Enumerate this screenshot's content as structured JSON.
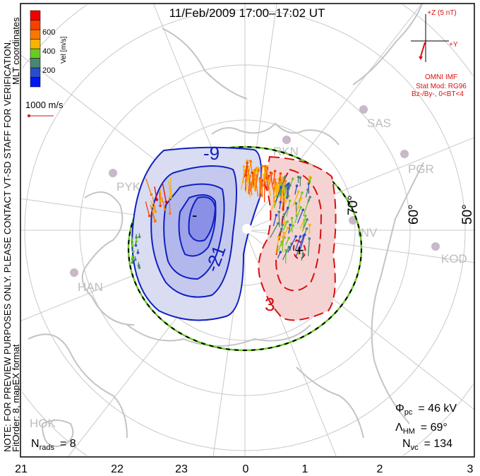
{
  "title": "11/Feb/2009 17:00–17:02 UT",
  "note": "NOTE: FOR PREVIEW PURPOSES ONLY. PLEASE CONTACT VT-SD STAFF FOR VERIFICATION.",
  "coords": "MLT coordinates",
  "fit": "FitOrder: 8, mapEX format",
  "colorbar": {
    "label": "Vel [m/s]",
    "ticks": [
      "200",
      "400",
      "600"
    ],
    "colors": [
      "#0018f0",
      "#2a4ec8",
      "#468870",
      "#66cc22",
      "#f8b400",
      "#f87800",
      "#f84000",
      "#f00000"
    ]
  },
  "ref_vector": "1000 m/s",
  "imf": {
    "z_label": "+Z (5 nT)",
    "y_label": "+Y",
    "source": "OMNI IMF",
    "model": "Stat Mod: RG96",
    "condition": "Bz-/By-, 0<BT<4"
  },
  "stats": {
    "phi_label": "Φ",
    "phi_sub": "pc",
    "phi_value": "= 46 kV",
    "lam_label": "Λ",
    "lam_sub": "HM",
    "lam_value": "= 69°",
    "nvc_label": "N",
    "nvc_sub": "vc",
    "nvc_value": "= 134",
    "nrads_label": "N",
    "nrads_sub": "rads",
    "nrads_value": "= 8"
  },
  "lat_labels": [
    "70°",
    "60°",
    "50°"
  ],
  "mlt_labels": [
    "21",
    "22",
    "23",
    "0",
    "1",
    "2",
    "3"
  ],
  "stations": [
    "RKN",
    "SAS",
    "PGR",
    "INV",
    "KOD",
    "PYK",
    "HAN",
    "HOK"
  ],
  "contour_labels": [
    "-9",
    "-21",
    "3",
    "-",
    "+"
  ],
  "colors": {
    "neg": "#1020c0",
    "pos": "#d81010",
    "negfill": "#c8cbee",
    "posfill": "#f5d3d3"
  }
}
